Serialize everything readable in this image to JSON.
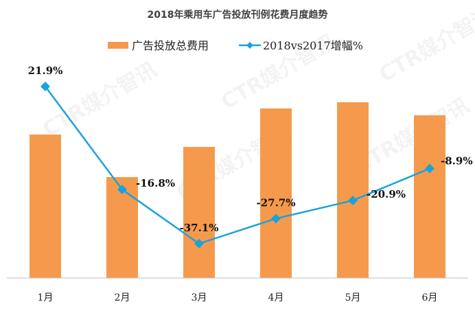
{
  "chart_data": {
    "type": "bar+line",
    "title": "2018年乘用车广告投放刊例花费月度趋势",
    "categories": [
      "1月",
      "2月",
      "3月",
      "4月",
      "5月",
      "6月"
    ],
    "series": [
      {
        "name": "广告投放总费用",
        "type": "bar",
        "color": "#F59A4C",
        "values": [
          209,
          147,
          191,
          247,
          256,
          237
        ],
        "note_axis": "no value axis printed; relative magnitudes"
      },
      {
        "name": "2018vs2017增幅%",
        "type": "line",
        "color": "#1AA3D9",
        "marker": "diamond",
        "values": [
          21.9,
          -16.8,
          -37.1,
          -27.7,
          -20.9,
          -8.9
        ],
        "labels": [
          "21.9%",
          "-16.8%",
          "-37.1%",
          "-27.7%",
          "-20.9%",
          "-8.9%"
        ]
      }
    ],
    "legend": "top",
    "grid": false,
    "watermark": "CTR媒介智讯"
  }
}
